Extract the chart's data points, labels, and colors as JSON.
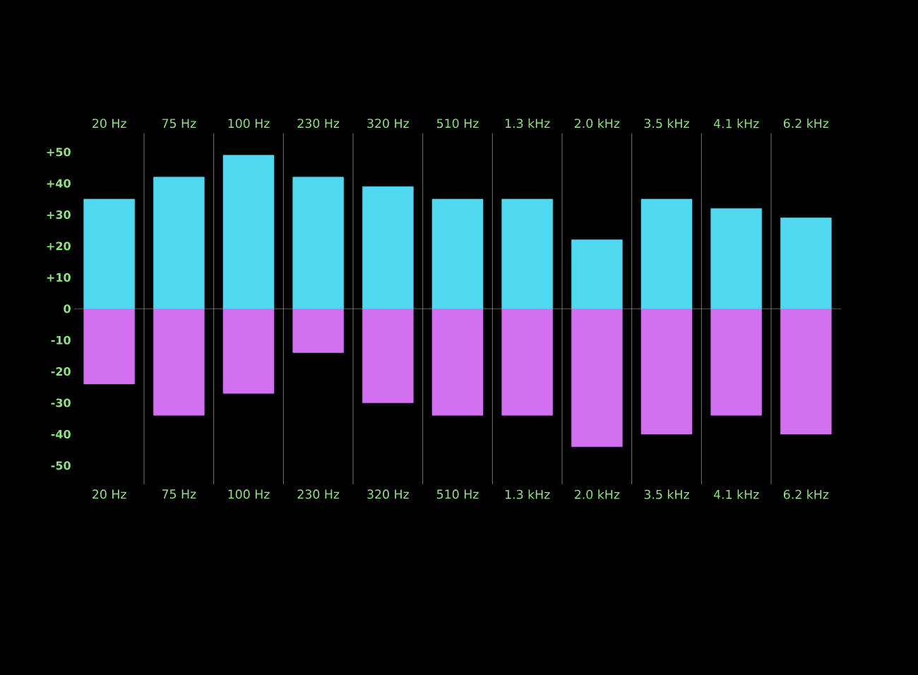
{
  "chart_data": {
    "type": "bar",
    "categories": [
      "20 Hz",
      "75 Hz",
      "100 Hz",
      "230 Hz",
      "320 Hz",
      "510 Hz",
      "1.3 kHz",
      "2.0 kHz",
      "3.5 kHz",
      "4.1 kHz",
      "6.2 kHz"
    ],
    "series": [
      {
        "color": "#4fd8f0",
        "values": [
          35,
          42,
          49,
          42,
          39,
          35,
          35,
          22,
          35,
          32,
          29
        ]
      },
      {
        "color": "#d070f0",
        "values": [
          -24,
          -34,
          -27,
          -14,
          -30,
          -34,
          -34,
          -44,
          -40,
          -34,
          -40
        ]
      }
    ],
    "ylim": [
      -56,
      56
    ],
    "yticks": [
      {
        "value": 50,
        "label": "+50"
      },
      {
        "value": 40,
        "label": "+40"
      },
      {
        "value": 30,
        "label": "+30"
      },
      {
        "value": 20,
        "label": "+20"
      },
      {
        "value": 10,
        "label": "+10"
      },
      0,
      -10,
      -20,
      -30,
      -40,
      -50
    ],
    "stacked": true
  }
}
